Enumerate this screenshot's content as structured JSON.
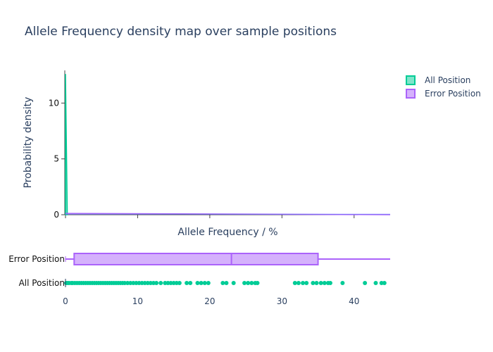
{
  "chart_data": {
    "type": "histogram",
    "title": "Allele Frequency density map over sample positions",
    "xlabel": "Allele Frequency / %",
    "ylabel": "Probability density",
    "xlim": [
      0,
      45
    ],
    "ylim": [
      0,
      12.8
    ],
    "x_ticks": [
      0,
      10,
      20,
      30,
      40
    ],
    "y_ticks": [
      0,
      5,
      10
    ],
    "legend_position": "top-right",
    "series": [
      {
        "name": "All Position",
        "color": "#00cc96",
        "density": [
          {
            "x": 0,
            "y": 12.6
          },
          {
            "x": 0.25,
            "y": 0.05
          }
        ],
        "rug_points": [
          0.1,
          0.3,
          0.5,
          0.8,
          1.0,
          1.3,
          1.6,
          1.9,
          2.2,
          2.5,
          2.8,
          3.1,
          3.4,
          3.7,
          4.0,
          4.3,
          4.6,
          4.9,
          5.2,
          5.5,
          5.8,
          6.1,
          6.4,
          6.7,
          7.0,
          7.3,
          7.6,
          7.9,
          8.2,
          8.6,
          9.0,
          9.4,
          9.8,
          10.2,
          10.6,
          11.0,
          11.4,
          11.8,
          12.2,
          12.6,
          13.2,
          13.8,
          14.2,
          14.6,
          15.0,
          15.4,
          15.8,
          16.8,
          17.3,
          18.3,
          18.8,
          19.3,
          19.8,
          21.8,
          22.3,
          23.3,
          24.8,
          25.3,
          25.8,
          26.3,
          26.6,
          31.8,
          32.3,
          32.9,
          33.4,
          34.3,
          34.8,
          35.4,
          35.9,
          36.4,
          36.7,
          38.4,
          41.5,
          43.0,
          43.8,
          44.2
        ]
      },
      {
        "name": "Error Position",
        "color": "#ab63fa",
        "density": [
          {
            "x": 0,
            "y": 0.12
          },
          {
            "x": 45,
            "y": 0.0
          }
        ],
        "box": {
          "min": 0,
          "q1": 1.2,
          "median": 23.0,
          "q3": 35.0,
          "max": 45
        }
      }
    ],
    "box_categories": [
      "Error Position",
      "All Position"
    ]
  }
}
